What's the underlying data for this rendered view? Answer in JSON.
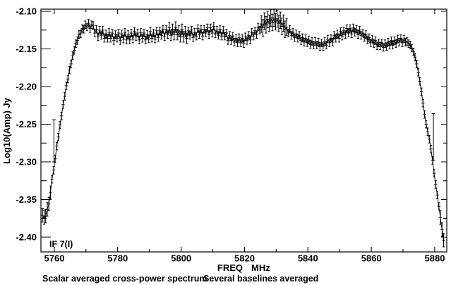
{
  "page": {
    "background": "#ffffff",
    "foreground": "#000000"
  },
  "chart_data": {
    "type": "line",
    "title": "",
    "xlabel": "FREQ",
    "xlabel_unit": "MHz",
    "ylabel": "Log10(Amp) Jy",
    "annotation": "IF 7(I)",
    "caption_left": "Scalar averaged cross-power spectrum",
    "caption_right": "Several baselines averaged",
    "grid": false,
    "legend": "none",
    "marker": "plus-with-errorbar",
    "line_color": "#000000",
    "background": "#ffffff",
    "xlim": [
      5755.8,
      5883.8
    ],
    "ylim": [
      -2.4196,
      -2.0972
    ],
    "x_major_ticks": [
      5760,
      5780,
      5800,
      5820,
      5840,
      5860,
      5880
    ],
    "x_tick_labels": [
      "5760",
      "5780",
      "5800",
      "5820",
      "5840",
      "5860",
      "5880"
    ],
    "x_minor_ticks": [
      5770,
      5790,
      5810,
      5830,
      5850,
      5870
    ],
    "y_major_ticks": [
      -2.1,
      -2.15,
      -2.2,
      -2.25,
      -2.3,
      -2.35,
      -2.4
    ],
    "y_tick_labels": [
      "-2.10",
      "-2.15",
      "-2.20",
      "-2.25",
      "-2.30",
      "-2.35",
      "-2.40"
    ],
    "y_minor_ticks": [
      -2.125,
      -2.175,
      -2.225,
      -2.275,
      -2.325,
      -2.375
    ],
    "x_start": 5756.3,
    "x_step": 0.5,
    "y": [
      -2.371,
      -2.374,
      -2.372,
      -2.363,
      -2.356,
      -2.341,
      -2.323,
      -2.311,
      -2.296,
      -2.279,
      -2.267,
      -2.251,
      -2.239,
      -2.224,
      -2.213,
      -2.199,
      -2.19,
      -2.178,
      -2.17,
      -2.159,
      -2.152,
      -2.143,
      -2.139,
      -2.131,
      -2.13,
      -2.123,
      -2.124,
      -2.118,
      -2.121,
      -2.116,
      -2.123,
      -2.118,
      -2.119,
      -2.129,
      -2.124,
      -2.134,
      -2.125,
      -2.132,
      -2.125,
      -2.136,
      -2.13,
      -2.136,
      -2.128,
      -2.136,
      -2.129,
      -2.139,
      -2.131,
      -2.136,
      -2.129,
      -2.139,
      -2.13,
      -2.137,
      -2.128,
      -2.138,
      -2.131,
      -2.138,
      -2.129,
      -2.137,
      -2.127,
      -2.134,
      -2.129,
      -2.138,
      -2.128,
      -2.136,
      -2.129,
      -2.138,
      -2.131,
      -2.137,
      -2.127,
      -2.136,
      -2.129,
      -2.137,
      -2.126,
      -2.135,
      -2.126,
      -2.132,
      -2.124,
      -2.134,
      -2.124,
      -2.131,
      -2.122,
      -2.132,
      -2.124,
      -2.131,
      -2.121,
      -2.131,
      -2.126,
      -2.134,
      -2.124,
      -2.134,
      -2.127,
      -2.136,
      -2.126,
      -2.132,
      -2.125,
      -2.135,
      -2.128,
      -2.133,
      -2.123,
      -2.131,
      -2.124,
      -2.133,
      -2.124,
      -2.129,
      -2.122,
      -2.131,
      -2.122,
      -2.129,
      -2.12,
      -2.13,
      -2.125,
      -2.132,
      -2.124,
      -2.133,
      -2.125,
      -2.133,
      -2.129,
      -2.139,
      -2.132,
      -2.139,
      -2.133,
      -2.141,
      -2.136,
      -2.142,
      -2.135,
      -2.142,
      -2.136,
      -2.143,
      -2.134,
      -2.139,
      -2.132,
      -2.138,
      -2.128,
      -2.133,
      -2.126,
      -2.131,
      -2.121,
      -2.125,
      -2.117,
      -2.122,
      -2.113,
      -2.118,
      -2.111,
      -2.116,
      -2.109,
      -2.115,
      -2.109,
      -2.114,
      -2.11,
      -2.116,
      -2.112,
      -2.12,
      -2.116,
      -2.124,
      -2.121,
      -2.129,
      -2.124,
      -2.132,
      -2.128,
      -2.135,
      -2.13,
      -2.136,
      -2.132,
      -2.139,
      -2.135,
      -2.141,
      -2.136,
      -2.142,
      -2.138,
      -2.144,
      -2.14,
      -2.145,
      -2.14,
      -2.145,
      -2.141,
      -2.147,
      -2.142,
      -2.147,
      -2.14,
      -2.145,
      -2.137,
      -2.142,
      -2.136,
      -2.141,
      -2.132,
      -2.136,
      -2.13,
      -2.136,
      -2.127,
      -2.133,
      -2.126,
      -2.131,
      -2.123,
      -2.129,
      -2.123,
      -2.13,
      -2.122,
      -2.128,
      -2.124,
      -2.131,
      -2.125,
      -2.132,
      -2.129,
      -2.135,
      -2.131,
      -2.138,
      -2.135,
      -2.142,
      -2.137,
      -2.143,
      -2.139,
      -2.146,
      -2.142,
      -2.146,
      -2.142,
      -2.148,
      -2.143,
      -2.147,
      -2.141,
      -2.145,
      -2.139,
      -2.145,
      -2.139,
      -2.143,
      -2.137,
      -2.141,
      -2.136,
      -2.142,
      -2.137,
      -2.141,
      -2.14,
      -2.143,
      -2.145,
      -2.149,
      -2.154,
      -2.161,
      -2.17,
      -2.181,
      -2.193,
      -2.207,
      -2.222,
      -2.237,
      -2.25,
      -2.26,
      -2.27,
      -2.283,
      -2.298,
      -2.315,
      -2.33,
      -2.344,
      -2.359,
      -2.374,
      -2.39,
      -2.404
    ],
    "err_default": 0.005,
    "err_regions": [
      {
        "from_x": 5756.0,
        "to_x": 5759.0,
        "err": 0.009
      },
      {
        "from_x": 5796.0,
        "to_x": 5802.0,
        "err": 0.007
      },
      {
        "from_x": 5825.0,
        "to_x": 5833.5,
        "err": 0.011
      },
      {
        "from_x": 5881.5,
        "to_x": 5883.0,
        "err": 0.009
      }
    ],
    "outlier_errorbars": [
      {
        "x": 5759.9,
        "y_low": -2.3,
        "y_high": -2.244
      },
      {
        "x": 5879.6,
        "y_low": -2.298,
        "y_high": -2.236
      }
    ]
  }
}
